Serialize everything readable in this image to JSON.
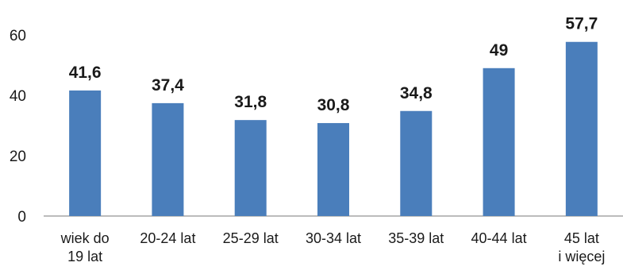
{
  "chart_data": {
    "type": "bar",
    "categories": [
      [
        "wiek do",
        "19 lat"
      ],
      [
        "20-24 lat"
      ],
      [
        "25-29 lat"
      ],
      [
        "30-34 lat"
      ],
      [
        "35-39 lat"
      ],
      [
        "40-44 lat"
      ],
      [
        "45 lat",
        "i więcej"
      ]
    ],
    "values": [
      41.6,
      37.4,
      31.8,
      30.8,
      34.8,
      49,
      57.7
    ],
    "data_labels": [
      "41,6",
      "37,4",
      "31,8",
      "30,8",
      "34,8",
      "49",
      "57,7"
    ],
    "yticks": [
      0,
      20,
      40,
      60
    ],
    "ylim": [
      0,
      60
    ],
    "grid": false,
    "legend": "none",
    "bar_color": "#4a7ebb",
    "axis_color": "#a6a6a6"
  }
}
